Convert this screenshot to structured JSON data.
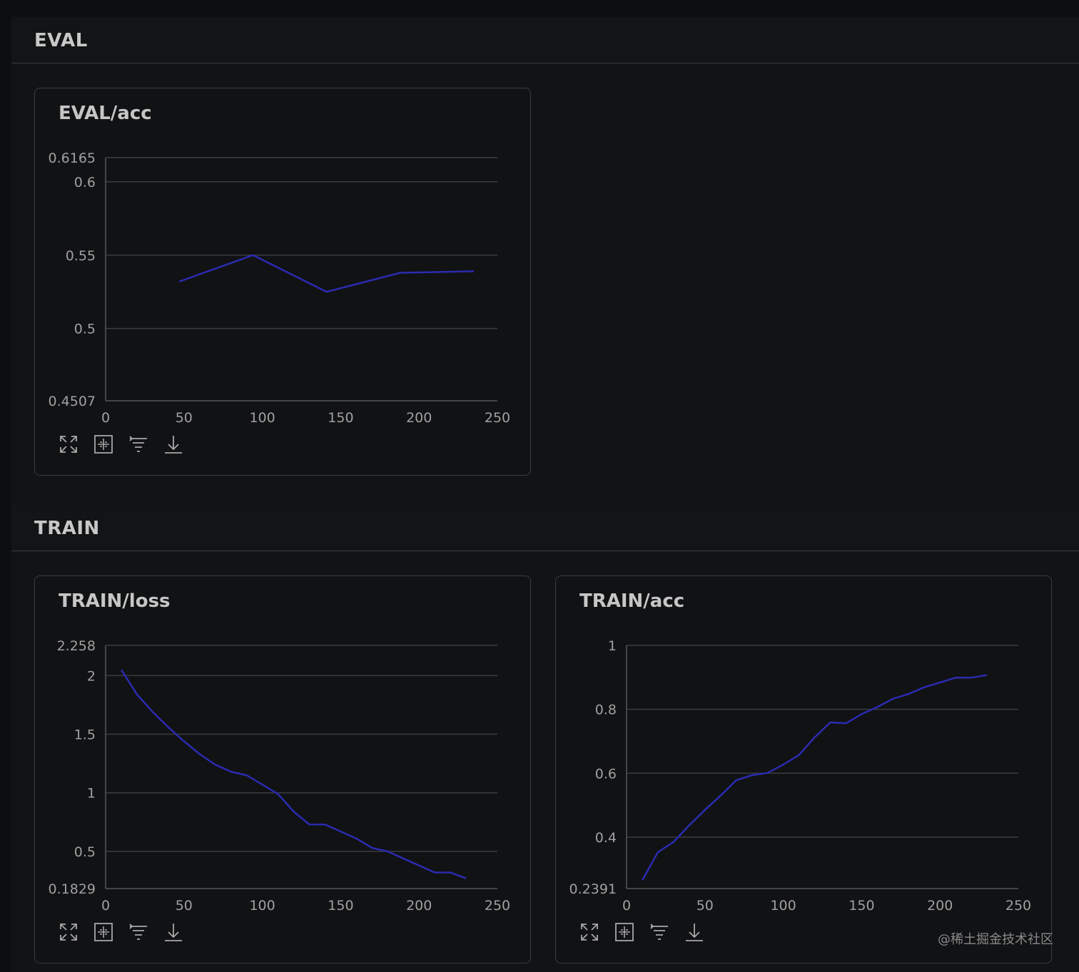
{
  "sections": [
    {
      "title": "EVAL"
    },
    {
      "title": "TRAIN"
    }
  ],
  "watermark": "@稀土掘金技术社区",
  "colors": {
    "line": "#2b2bb0",
    "grid": "#3a3c40",
    "axis": "#55575c"
  },
  "toolbar_icons": [
    "expand-icon",
    "fit-icon",
    "filter-icon",
    "download-icon"
  ],
  "chart_data": [
    {
      "type": "line",
      "title": "EVAL/acc",
      "xlabel": "",
      "ylabel": "",
      "xlim": [
        0,
        250
      ],
      "ylim": [
        0.4507,
        0.6165
      ],
      "xticks": [
        "0",
        "50",
        "100",
        "150",
        "200",
        "250"
      ],
      "yticks": [
        {
          "value": 0.6165,
          "label": "0.6165"
        },
        {
          "value": 0.6,
          "label": "0.6"
        },
        {
          "value": 0.55,
          "label": "0.55"
        },
        {
          "value": 0.5,
          "label": "0.5"
        },
        {
          "value": 0.4507,
          "label": "0.4507"
        }
      ],
      "grid": true,
      "series": [
        {
          "x": [
            47,
            94,
            141,
            188,
            235
          ],
          "y": [
            0.532,
            0.55,
            0.525,
            0.538,
            0.539
          ]
        }
      ]
    },
    {
      "type": "line",
      "title": "TRAIN/loss",
      "xlabel": "",
      "ylabel": "",
      "xlim": [
        0,
        250
      ],
      "ylim": [
        0.1829,
        2.258
      ],
      "xticks": [
        "0",
        "50",
        "100",
        "150",
        "200",
        "250"
      ],
      "yticks": [
        {
          "value": 2.258,
          "label": "2.258"
        },
        {
          "value": 2,
          "label": "2"
        },
        {
          "value": 1.5,
          "label": "1.5"
        },
        {
          "value": 1,
          "label": "1"
        },
        {
          "value": 0.5,
          "label": "0.5"
        },
        {
          "value": 0.1829,
          "label": "0.1829"
        }
      ],
      "grid": true,
      "series": [
        {
          "x": [
            10,
            20,
            30,
            40,
            50,
            60,
            70,
            80,
            90,
            100,
            110,
            120,
            130,
            140,
            150,
            160,
            170,
            180,
            190,
            200,
            210,
            220,
            230
          ],
          "y": [
            2.05,
            1.84,
            1.69,
            1.56,
            1.44,
            1.33,
            1.24,
            1.18,
            1.15,
            1.07,
            0.99,
            0.84,
            0.73,
            0.73,
            0.67,
            0.61,
            0.53,
            0.5,
            0.44,
            0.38,
            0.32,
            0.32,
            0.27
          ]
        }
      ]
    },
    {
      "type": "line",
      "title": "TRAIN/acc",
      "xlabel": "",
      "ylabel": "",
      "xlim": [
        0,
        250
      ],
      "ylim": [
        0.2391,
        1.0
      ],
      "xticks": [
        "0",
        "50",
        "100",
        "150",
        "200",
        "250"
      ],
      "yticks": [
        {
          "value": 1,
          "label": "1"
        },
        {
          "value": 0.8,
          "label": "0.8"
        },
        {
          "value": 0.6,
          "label": "0.6"
        },
        {
          "value": 0.4,
          "label": "0.4"
        },
        {
          "value": 0.2391,
          "label": "0.2391"
        }
      ],
      "grid": true,
      "series": [
        {
          "x": [
            10,
            20,
            30,
            40,
            50,
            60,
            70,
            80,
            90,
            100,
            110,
            120,
            130,
            140,
            150,
            160,
            170,
            180,
            190,
            200,
            210,
            220,
            230
          ],
          "y": [
            0.265,
            0.353,
            0.385,
            0.437,
            0.485,
            0.53,
            0.578,
            0.594,
            0.601,
            0.627,
            0.657,
            0.712,
            0.759,
            0.756,
            0.785,
            0.807,
            0.833,
            0.848,
            0.869,
            0.884,
            0.899,
            0.899,
            0.907
          ]
        }
      ]
    }
  ]
}
